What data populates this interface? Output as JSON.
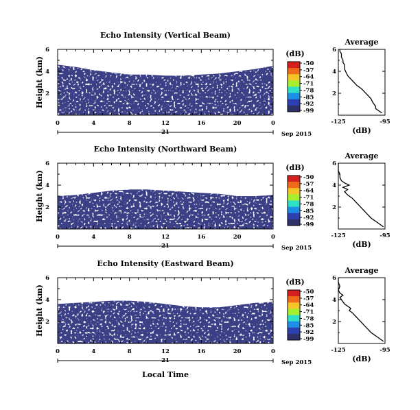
{
  "chart_data": [
    {
      "type": "heatmap",
      "title": "Echo Intensity (Vertical Beam)",
      "ylabel": "Height (km)",
      "xlabel": "",
      "xticks": [
        "0",
        "4",
        "8",
        "12",
        "16",
        "20",
        "0"
      ],
      "date_tick": "21",
      "date_label": "Sep 2015",
      "xlim": [
        0,
        24
      ],
      "ylim": [
        0,
        6
      ],
      "yticks": [
        "2",
        "4",
        "6"
      ],
      "grid": false,
      "colorbar": {
        "label": "(dB)",
        "levels": [
          "-50",
          "-57",
          "-64",
          "-71",
          "-78",
          "-85",
          "-92",
          "-99"
        ],
        "colors": [
          "#d61f1f",
          "#f06a1c",
          "#f4c527",
          "#a6ef2f",
          "#2fe0c4",
          "#1d8fe6",
          "#2e3fb0",
          "#2e3268"
        ]
      },
      "heat_fill_color": "#3b3f86",
      "threshold_height_km": [
        4.6,
        4.4,
        4.1,
        3.9,
        3.7,
        3.7,
        3.6,
        3.6,
        3.7,
        3.8,
        4.0,
        4.2,
        4.5
      ],
      "profile": {
        "title": "Average",
        "xlabel": "(dB)",
        "xticks": [
          "-125",
          "-95"
        ],
        "xlim": [
          -125,
          -95
        ],
        "ylim": [
          0,
          6
        ],
        "yticks": [
          "2",
          "4",
          "6"
        ],
        "height_km": [
          0.2,
          0.4,
          0.6,
          0.8,
          1.0,
          1.2,
          1.5,
          1.8,
          2.1,
          2.4,
          2.7,
          3.0,
          3.3,
          3.6,
          3.9,
          4.2,
          4.4,
          4.6,
          4.8,
          5.0,
          5.3,
          5.6,
          5.8,
          6.0
        ],
        "db": [
          -97,
          -99,
          -101,
          -101,
          -102,
          -103,
          -104,
          -106,
          -108,
          -110,
          -113,
          -115,
          -117,
          -119,
          -120,
          -121,
          -121,
          -121,
          -122,
          -122,
          -123,
          -123,
          -124,
          -124
        ]
      }
    },
    {
      "type": "heatmap",
      "title": "Echo Intensity (Northward Beam)",
      "ylabel": "Height (km)",
      "xlabel": "",
      "xticks": [
        "0",
        "4",
        "8",
        "12",
        "16",
        "20",
        "0"
      ],
      "date_tick": "21",
      "date_label": "Sep 2015",
      "xlim": [
        0,
        24
      ],
      "ylim": [
        0,
        6
      ],
      "yticks": [
        "2",
        "4",
        "6"
      ],
      "grid": false,
      "colorbar": {
        "label": "(dB)",
        "levels": [
          "-50",
          "-57",
          "-64",
          "-71",
          "-78",
          "-85",
          "-92",
          "-99"
        ],
        "colors": [
          "#d61f1f",
          "#f06a1c",
          "#f4c527",
          "#a6ef2f",
          "#2fe0c4",
          "#1d8fe6",
          "#2e3fb0",
          "#2e3268"
        ]
      },
      "heat_fill_color": "#3b3f86",
      "threshold_height_km": [
        3.0,
        3.1,
        3.3,
        3.5,
        3.6,
        3.6,
        3.5,
        3.4,
        3.3,
        3.2,
        3.0,
        3.0,
        3.1
      ],
      "profile": {
        "title": "Average",
        "xlabel": "(dB)",
        "xticks": [
          "-125",
          "-95"
        ],
        "xlim": [
          -125,
          -95
        ],
        "ylim": [
          0,
          6
        ],
        "yticks": [
          "2",
          "4",
          "6"
        ],
        "height_km": [
          0.2,
          0.4,
          0.6,
          0.8,
          1.0,
          1.3,
          1.6,
          1.9,
          2.2,
          2.5,
          2.8,
          3.1,
          3.4,
          3.6,
          3.8,
          4.0,
          4.2,
          4.4,
          4.7,
          5.0,
          5.3,
          5.6,
          6.0
        ],
        "db": [
          -96,
          -98,
          -100,
          -102,
          -104,
          -106,
          -108,
          -110,
          -112,
          -114,
          -116,
          -119,
          -121,
          -119,
          -122,
          -118,
          -121,
          -123,
          -124,
          -124,
          -125,
          -125,
          -125
        ]
      }
    },
    {
      "type": "heatmap",
      "title": "Echo Intensity (Eastward Beam)",
      "ylabel": "Height (km)",
      "xlabel": "Local Time",
      "xticks": [
        "0",
        "4",
        "8",
        "12",
        "16",
        "20",
        "0"
      ],
      "date_tick": "21",
      "date_label": "Sep 2015",
      "xlim": [
        0,
        24
      ],
      "ylim": [
        0,
        6
      ],
      "yticks": [
        "2",
        "4",
        "6"
      ],
      "grid": false,
      "colorbar": {
        "label": "(dB)",
        "levels": [
          "-50",
          "-57",
          "-64",
          "-71",
          "-78",
          "-85",
          "-92",
          "-99"
        ],
        "colors": [
          "#d61f1f",
          "#f06a1c",
          "#f4c527",
          "#a6ef2f",
          "#2fe0c4",
          "#1d8fe6",
          "#2e3fb0",
          "#2e3268"
        ]
      },
      "heat_fill_color": "#3b3f86",
      "threshold_height_km": [
        3.6,
        3.7,
        3.8,
        3.9,
        3.9,
        3.8,
        3.6,
        3.4,
        3.3,
        3.3,
        3.5,
        3.7,
        3.8
      ],
      "profile": {
        "title": "Average",
        "xlabel": "(dB)",
        "xticks": [
          "-125",
          "-95"
        ],
        "xlim": [
          -125,
          -95
        ],
        "ylim": [
          0,
          6
        ],
        "yticks": [
          "2",
          "4",
          "6"
        ],
        "height_km": [
          0.2,
          0.4,
          0.6,
          0.8,
          1.0,
          1.3,
          1.6,
          1.9,
          2.2,
          2.5,
          2.8,
          3.0,
          3.2,
          3.4,
          3.6,
          3.8,
          4.0,
          4.2,
          4.4,
          4.6,
          4.9,
          5.2,
          5.6,
          6.0
        ],
        "db": [
          -96,
          -98,
          -100,
          -102,
          -104,
          -106,
          -108,
          -110,
          -112,
          -114,
          -116,
          -118,
          -117,
          -119,
          -121,
          -122,
          -123,
          -124,
          -122,
          -124,
          -125,
          -124,
          -125,
          -125
        ]
      }
    }
  ]
}
